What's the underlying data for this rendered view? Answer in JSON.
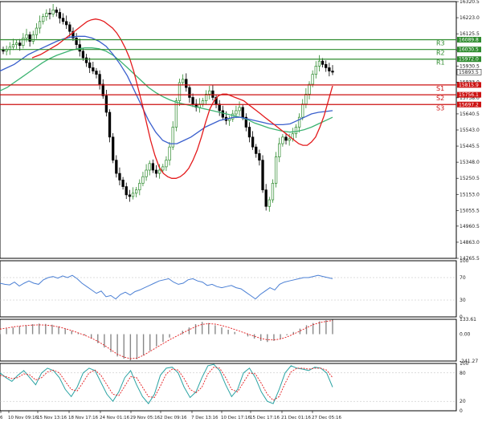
{
  "chart_data": {
    "type": "line",
    "subtype": "candlestick",
    "main_panel": {
      "ylim": [
        14765.5,
        16320.5
      ],
      "y_ticks": [
        "16320.5",
        "16223.0",
        "16125.5",
        "16028.0",
        "15930.5",
        "15833.0",
        "15738.0",
        "15640.5",
        "15543.0",
        "15445.5",
        "15348.0",
        "15250.5",
        "15153.0",
        "15055.5",
        "14960.5",
        "14863.0",
        "14765.5"
      ],
      "price_labels": {
        "r3": "16089.8",
        "r2": "16030.5",
        "r1": "15972.0",
        "current": "15893.5",
        "s1": "15815.9",
        "s2": "15756.1",
        "s3": "15697.2"
      },
      "levels": [
        {
          "name": "R3",
          "value": 16089.8,
          "color": "#2e8b2e"
        },
        {
          "name": "R2",
          "value": 16030.5,
          "color": "#2e8b2e"
        },
        {
          "name": "R1",
          "value": 15972.0,
          "color": "#2e8b2e"
        },
        {
          "name": "S1",
          "value": 15815.9,
          "color": "#cc1111"
        },
        {
          "name": "S2",
          "value": 15756.1,
          "color": "#cc1111"
        },
        {
          "name": "S3",
          "value": 15697.2,
          "color": "#cc1111"
        }
      ],
      "close_series": [
        16020,
        16030,
        16045,
        16060,
        16070,
        16055,
        16100,
        16120,
        16080,
        16120,
        16160,
        16200,
        16230,
        16250,
        16245,
        16270,
        16255,
        16220,
        16200,
        16180,
        16140,
        16100,
        16060,
        16020,
        15980,
        15950,
        15920,
        15900,
        15880,
        15820,
        15750,
        15650,
        15500,
        15360,
        15280,
        15240,
        15200,
        15150,
        15140,
        15160,
        15180,
        15220,
        15260,
        15300,
        15340,
        15300,
        15280,
        15300,
        15320,
        15360,
        15440,
        15560,
        15720,
        15830,
        15850,
        15800,
        15740,
        15700,
        15680,
        15700,
        15720,
        15760,
        15780,
        15740,
        15700,
        15660,
        15620,
        15600,
        15610,
        15640,
        15660,
        15680,
        15620,
        15560,
        15500,
        15440,
        15400,
        15360,
        15180,
        15080,
        15120,
        15220,
        15380,
        15460,
        15500,
        15480,
        15490,
        15520,
        15560,
        15620,
        15700,
        15760,
        15820,
        15880,
        15930,
        15960,
        15940,
        15920,
        15900,
        15893
      ],
      "ma_red": [
        15980,
        15990,
        16000,
        16015,
        16030,
        16045,
        16060,
        16080,
        16100,
        16120,
        16140,
        16160,
        16180,
        16200,
        16210,
        16215,
        16210,
        16200,
        16180,
        16160,
        16130,
        16090,
        16040,
        15980,
        15900,
        15800,
        15700,
        15590,
        15480,
        15390,
        15320,
        15280,
        15260,
        15250,
        15250,
        15260,
        15280,
        15310,
        15360,
        15420,
        15500,
        15590,
        15670,
        15720,
        15750,
        15760,
        15760,
        15750,
        15740,
        15730,
        15720,
        15700,
        15680,
        15660,
        15640,
        15620,
        15600,
        15580,
        15560,
        15540,
        15520,
        15500,
        15480,
        15460,
        15450,
        15450,
        15470,
        15500,
        15560,
        15630,
        15720,
        15810
      ],
      "ma_blue": [
        15900,
        15920,
        15940,
        15970,
        16000,
        16020,
        16040,
        16060,
        16080,
        16095,
        16105,
        16110,
        16110,
        16100,
        16080,
        16050,
        16000,
        15940,
        15870,
        15780,
        15690,
        15600,
        15530,
        15480,
        15460,
        15460,
        15480,
        15500,
        15530,
        15560,
        15580,
        15600,
        15610,
        15620,
        15620,
        15610,
        15600,
        15590,
        15580,
        15575,
        15575,
        15580,
        15600,
        15620,
        15640,
        15650,
        15655,
        15660
      ],
      "ma_green": [
        15780,
        15800,
        15830,
        15860,
        15890,
        15920,
        15950,
        15975,
        15995,
        16010,
        16025,
        16035,
        16040,
        16040,
        16035,
        16020,
        15995,
        15960,
        15920,
        15880,
        15840,
        15800,
        15770,
        15745,
        15725,
        15710,
        15700,
        15690,
        15680,
        15670,
        15660,
        15650,
        15640,
        15630,
        15620,
        15605,
        15585,
        15570,
        15555,
        15545,
        15535,
        15530,
        15535,
        15545,
        15560,
        15580,
        15600,
        15620
      ]
    },
    "rsi_panel": {
      "ylim": [
        0,
        100
      ],
      "y_ticks": [
        "100",
        "70",
        "30",
        "0"
      ],
      "values": [
        60,
        58,
        57,
        62,
        55,
        60,
        64,
        60,
        58,
        66,
        70,
        72,
        69,
        73,
        70,
        74,
        68,
        60,
        54,
        48,
        42,
        46,
        36,
        38,
        32,
        40,
        44,
        39,
        45,
        48,
        52,
        56,
        60,
        64,
        66,
        68,
        62,
        58,
        60,
        66,
        68,
        64,
        62,
        56,
        58,
        54,
        52,
        54,
        56,
        52,
        50,
        44,
        38,
        32,
        40,
        46,
        52,
        48,
        58,
        62,
        64,
        66,
        68,
        70,
        70,
        72,
        74,
        72,
        70,
        68
      ]
    },
    "macd_panel": {
      "ylim": [
        -241.27,
        133.61
      ],
      "y_ticks": [
        "133.61",
        "0.00",
        "-241.27"
      ],
      "histogram": [
        40,
        50,
        60,
        70,
        80,
        90,
        95,
        92,
        85,
        70,
        50,
        30,
        10,
        -10,
        -40,
        -80,
        -120,
        -160,
        -200,
        -220,
        -240,
        -225,
        -190,
        -150,
        -110,
        -70,
        -30,
        0,
        30,
        60,
        90,
        110,
        100,
        80,
        60,
        40,
        20,
        0,
        -20,
        -40,
        -60,
        -70,
        -60,
        -40,
        -10,
        20,
        50,
        80,
        100,
        115,
        125,
        130
      ],
      "signal": [
        45,
        55,
        65,
        72,
        78,
        82,
        84,
        82,
        76,
        65,
        50,
        32,
        12,
        -10,
        -35,
        -65,
        -100,
        -140,
        -180,
        -205,
        -220,
        -215,
        -190,
        -155,
        -120,
        -85,
        -50,
        -20,
        10,
        40,
        68,
        88,
        95,
        90,
        78,
        62,
        42,
        22,
        2,
        -18,
        -38,
        -50,
        -52,
        -44,
        -25,
        0,
        28,
        58,
        85,
        103,
        115,
        122
      ]
    },
    "stoch_panel": {
      "ylim": [
        0,
        100
      ],
      "y_ticks": [
        "100",
        "80",
        "20",
        "0"
      ],
      "k_values": [
        80,
        70,
        62,
        75,
        85,
        70,
        55,
        80,
        90,
        85,
        70,
        45,
        30,
        50,
        80,
        90,
        85,
        60,
        35,
        20,
        40,
        70,
        85,
        55,
        30,
        15,
        35,
        75,
        90,
        92,
        80,
        50,
        28,
        40,
        70,
        95,
        98,
        85,
        55,
        30,
        45,
        80,
        90,
        70,
        40,
        20,
        15,
        45,
        80,
        95,
        90,
        88,
        85,
        92,
        90,
        80,
        50
      ],
      "d_values": [
        75,
        72,
        68,
        70,
        78,
        76,
        65,
        70,
        82,
        86,
        80,
        62,
        45,
        42,
        60,
        80,
        86,
        75,
        55,
        35,
        32,
        52,
        72,
        70,
        50,
        30,
        28,
        52,
        78,
        88,
        86,
        68,
        45,
        38,
        50,
        78,
        92,
        90,
        70,
        45,
        40,
        60,
        80,
        78,
        58,
        35,
        22,
        30,
        58,
        82,
        90,
        90,
        88,
        90,
        90,
        86,
        70
      ]
    },
    "x_tick_labels": [
      "6",
      "10 Nov 09:16",
      "15 Nov 13:16",
      "18 Nov 17:16",
      "24 Nov 01:16",
      "29 Nov 05:16",
      "2 Dec 09:16",
      "7 Dec 13:16",
      "10 Dec 17:16",
      "15 Dec 17:16",
      "21 Dec 01:16",
      "27 Dec 05:16"
    ],
    "colors": {
      "bull_candle": "#2e8b2e",
      "bear_candle": "#000000",
      "ma_red": "#e41a1c",
      "ma_blue": "#3a5fcd",
      "ma_green": "#3cb371",
      "resistance": "#2e8b2e",
      "support": "#cc1111",
      "rsi": "#4a7fd4",
      "macd_hist": "#888888",
      "macd_signal": "#e41a1c",
      "stoch_k": "#2aa3a3",
      "stoch_d": "#e41a1c"
    }
  }
}
